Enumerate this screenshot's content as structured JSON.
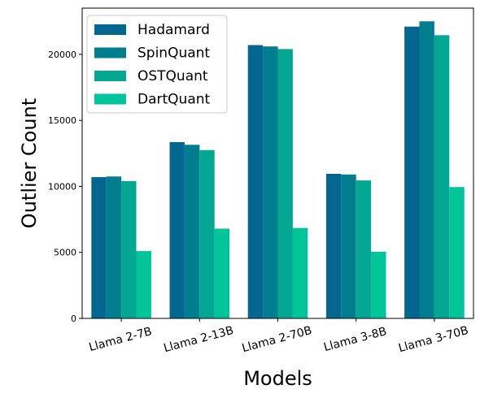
{
  "chart_data": {
    "type": "bar",
    "categories": [
      "Llama 2-7B",
      "Llama 2-13B",
      "Llama 2-70B",
      "Llama 3-8B",
      "Llama 3-70B"
    ],
    "series": [
      {
        "name": "Hadamard",
        "color": "#046790",
        "values": [
          10700,
          13350,
          20700,
          10950,
          22100
        ]
      },
      {
        "name": "SpinQuant",
        "color": "#007D8F",
        "values": [
          10750,
          13150,
          20600,
          10900,
          22500
        ]
      },
      {
        "name": "OSTQuant",
        "color": "#03A792",
        "values": [
          10400,
          12750,
          20400,
          10450,
          21450
        ]
      },
      {
        "name": "DartQuant",
        "color": "#00C49A",
        "values": [
          5100,
          6800,
          6850,
          5050,
          9950
        ]
      }
    ],
    "xlabel": "Models",
    "ylabel": "Outlier Count",
    "ylim": [
      0,
      23500
    ],
    "yticks": [
      0,
      5000,
      10000,
      15000,
      20000
    ],
    "grid": false,
    "legend_position": "top-left"
  }
}
